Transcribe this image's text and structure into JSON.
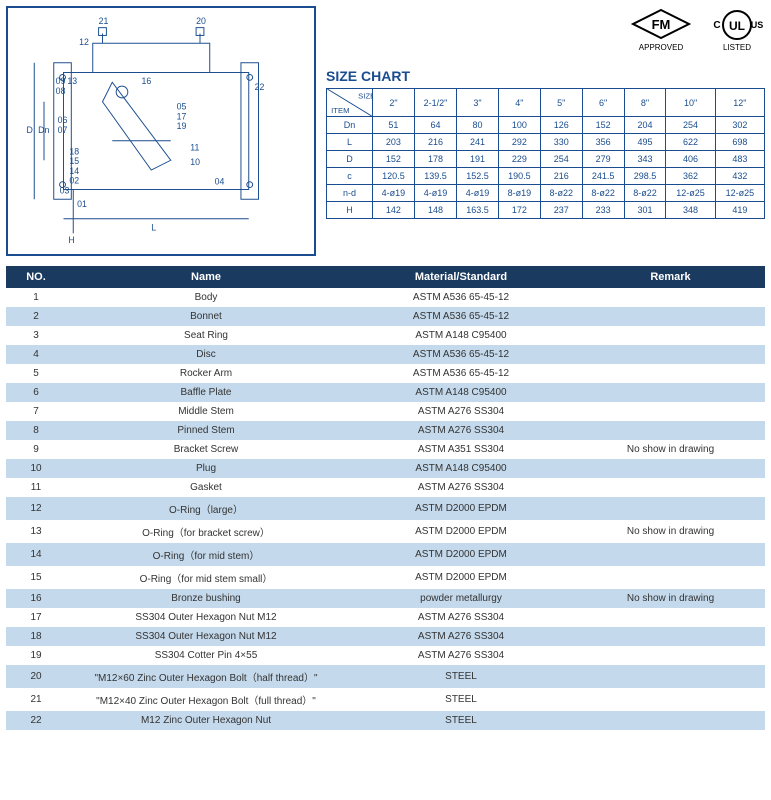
{
  "logos": {
    "fm": {
      "top": "FM",
      "bottom": "APPROVED",
      "fill": "#000000"
    },
    "ul": {
      "left": "C",
      "right": "US",
      "center": "UL",
      "bottom": "LISTED",
      "fill": "#000000"
    }
  },
  "diagram": {
    "callouts": [
      "21",
      "12",
      "09",
      "13",
      "08",
      "06",
      "07",
      "18",
      "15",
      "14",
      "02",
      "03",
      "01",
      "16",
      "05",
      "17",
      "19",
      "11",
      "10",
      "04",
      "20",
      "22"
    ],
    "dim_labels": [
      "D",
      "Dn",
      "H",
      "L"
    ],
    "stroke": "#1a4d8f"
  },
  "size_chart": {
    "title": "SIZE CHART",
    "corner_top": "SIZE",
    "corner_bottom": "ITEM",
    "sizes": [
      "2\"",
      "2-1/2\"",
      "3\"",
      "4\"",
      "5\"",
      "6\"",
      "8\"",
      "10\"",
      "12\""
    ],
    "rows": [
      {
        "label": "Dn",
        "vals": [
          "51",
          "64",
          "80",
          "100",
          "126",
          "152",
          "204",
          "254",
          "302"
        ]
      },
      {
        "label": "L",
        "vals": [
          "203",
          "216",
          "241",
          "292",
          "330",
          "356",
          "495",
          "622",
          "698"
        ]
      },
      {
        "label": "D",
        "vals": [
          "152",
          "178",
          "191",
          "229",
          "254",
          "279",
          "343",
          "406",
          "483"
        ]
      },
      {
        "label": "c",
        "vals": [
          "120.5",
          "139.5",
          "152.5",
          "190.5",
          "216",
          "241.5",
          "298.5",
          "362",
          "432"
        ]
      },
      {
        "label": "n-d",
        "vals": [
          "4-ø19",
          "4-ø19",
          "4-ø19",
          "8-ø19",
          "8-ø22",
          "8-ø22",
          "8-ø22",
          "12-ø25",
          "12-ø25"
        ]
      },
      {
        "label": "H",
        "vals": [
          "142",
          "148",
          "163.5",
          "172",
          "237",
          "233",
          "301",
          "348",
          "419"
        ]
      }
    ],
    "border_color": "#1a4d8f",
    "text_color": "#1a4d8f",
    "font_size": 9
  },
  "parts_table": {
    "header_bg": "#1a3a5f",
    "header_fg": "#ffffff",
    "row_odd_bg": "#ffffff",
    "row_even_bg": "#c4d9eb",
    "columns": [
      "NO.",
      "Name",
      "Material/Standard",
      "Remark"
    ],
    "rows": [
      {
        "no": "1",
        "name": "Body",
        "mat": "ASTM A536  65-45-12",
        "rmk": ""
      },
      {
        "no": "2",
        "name": "Bonnet",
        "mat": "ASTM A536  65-45-12",
        "rmk": ""
      },
      {
        "no": "3",
        "name": "Seat Ring",
        "mat": "ASTM A148  C95400",
        "rmk": ""
      },
      {
        "no": "4",
        "name": "Disc",
        "mat": "ASTM A536  65-45-12",
        "rmk": ""
      },
      {
        "no": "5",
        "name": "Rocker Arm",
        "mat": "ASTM A536  65-45-12",
        "rmk": ""
      },
      {
        "no": "6",
        "name": "Baffle Plate",
        "mat": "ASTM A148  C95400",
        "rmk": ""
      },
      {
        "no": "7",
        "name": "Middle Stem",
        "mat": "ASTM A276  SS304",
        "rmk": ""
      },
      {
        "no": "8",
        "name": "Pinned Stem",
        "mat": "ASTM A276  SS304",
        "rmk": ""
      },
      {
        "no": "9",
        "name": "Bracket Screw",
        "mat": "ASTM A351  SS304",
        "rmk": "No show in drawing"
      },
      {
        "no": "10",
        "name": "Plug",
        "mat": "ASTM A148  C95400",
        "rmk": ""
      },
      {
        "no": "11",
        "name": "Gasket",
        "mat": "ASTM A276  SS304",
        "rmk": ""
      },
      {
        "no": "12",
        "name": "O-Ring（large）",
        "mat": "ASTM D2000  EPDM",
        "rmk": ""
      },
      {
        "no": "13",
        "name": "O-Ring（for bracket screw）",
        "mat": "ASTM D2000  EPDM",
        "rmk": "No show in drawing"
      },
      {
        "no": "14",
        "name": "O-Ring（for mid stem）",
        "mat": "ASTM D2000  EPDM",
        "rmk": ""
      },
      {
        "no": "15",
        "name": "O-Ring（for mid stem small）",
        "mat": "ASTM D2000  EPDM",
        "rmk": ""
      },
      {
        "no": "16",
        "name": "Bronze bushing",
        "mat": "powder metallurgy",
        "rmk": "No show in drawing"
      },
      {
        "no": "17",
        "name": "SS304 Outer Hexagon Nut  M12",
        "mat": "ASTM A276  SS304",
        "rmk": ""
      },
      {
        "no": "18",
        "name": "SS304 Outer Hexagon Nut M12",
        "mat": "ASTM A276  SS304",
        "rmk": ""
      },
      {
        "no": "19",
        "name": "SS304 Cotter Pin 4×55",
        "mat": "ASTM A276  SS304",
        "rmk": ""
      },
      {
        "no": "20",
        "name": "\"M12×60 Zinc Outer Hexagon Bolt（half thread）\"",
        "mat": "STEEL",
        "rmk": ""
      },
      {
        "no": "21",
        "name": "\"M12×40 Zinc Outer Hexagon Bolt（full thread）\"",
        "mat": "STEEL",
        "rmk": ""
      },
      {
        "no": "22",
        "name": "M12 Zinc Outer Hexagon Nut",
        "mat": "STEEL",
        "rmk": ""
      }
    ]
  }
}
